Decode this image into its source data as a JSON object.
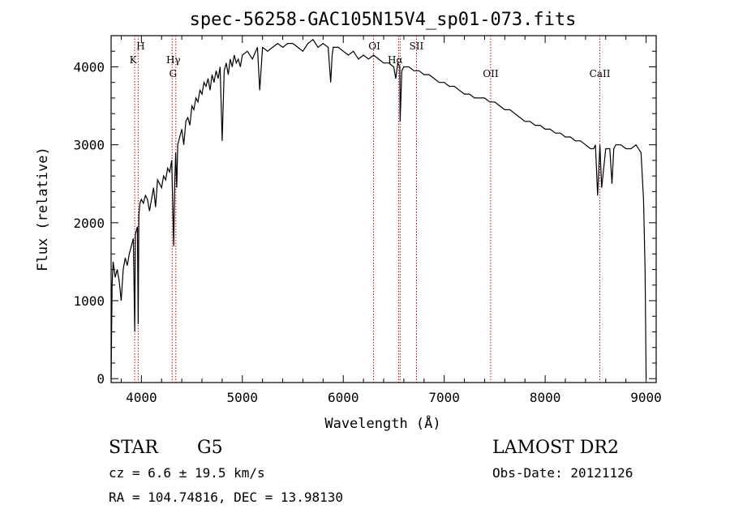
{
  "chart_data": {
    "type": "line",
    "title": "spec-56258-GAC105N15V4_sp01-073.fits",
    "xlabel": "Wavelength (Å)",
    "ylabel": "Flux (relative)",
    "xlim": [
      3700,
      9100
    ],
    "ylim": [
      -50,
      4400
    ],
    "xticks": [
      4000,
      5000,
      6000,
      7000,
      8000,
      9000
    ],
    "yticks": [
      0,
      1000,
      2000,
      3000,
      4000
    ],
    "series": [
      {
        "x": [
          3700,
          3710,
          3720,
          3740,
          3760,
          3780,
          3800,
          3820,
          3840,
          3860,
          3880,
          3900,
          3920,
          3934,
          3940,
          3950,
          3960,
          3968,
          3975,
          3985,
          4000,
          4020,
          4040,
          4060,
          4080,
          4100,
          4120,
          4140,
          4160,
          4180,
          4200,
          4220,
          4240,
          4260,
          4280,
          4300,
          4320,
          4330,
          4340,
          4350,
          4360,
          4380,
          4400,
          4420,
          4440,
          4460,
          4480,
          4500,
          4520,
          4540,
          4560,
          4580,
          4600,
          4620,
          4640,
          4660,
          4680,
          4700,
          4720,
          4740,
          4760,
          4780,
          4800,
          4820,
          4840,
          4860,
          4880,
          4900,
          4920,
          4940,
          4960,
          4980,
          5000,
          5050,
          5100,
          5150,
          5172,
          5200,
          5250,
          5300,
          5350,
          5400,
          5450,
          5500,
          5550,
          5600,
          5650,
          5700,
          5750,
          5800,
          5850,
          5875,
          5890,
          5900,
          5950,
          6000,
          6050,
          6100,
          6150,
          6200,
          6250,
          6300,
          6350,
          6400,
          6450,
          6500,
          6520,
          6540,
          6560,
          6563,
          6580,
          6600,
          6650,
          6700,
          6750,
          6800,
          6850,
          6900,
          6950,
          7000,
          7050,
          7100,
          7150,
          7200,
          7250,
          7300,
          7350,
          7400,
          7450,
          7500,
          7550,
          7600,
          7650,
          7700,
          7750,
          7800,
          7850,
          7900,
          7950,
          8000,
          8050,
          8100,
          8150,
          8200,
          8250,
          8300,
          8350,
          8400,
          8450,
          8480,
          8498,
          8520,
          8542,
          8560,
          8600,
          8640,
          8662,
          8680,
          8700,
          8750,
          8800,
          8850,
          8900,
          8950,
          8975,
          8990,
          9000
        ],
        "values": [
          0,
          1200,
          1500,
          1300,
          1400,
          1250,
          1000,
          1400,
          1550,
          1450,
          1600,
          1700,
          1800,
          600,
          1850,
          1900,
          1950,
          700,
          2100,
          2250,
          2300,
          2250,
          2350,
          2300,
          2150,
          2300,
          2450,
          2200,
          2550,
          2500,
          2450,
          2600,
          2550,
          2700,
          2650,
          2800,
          1700,
          2500,
          2900,
          2450,
          3000,
          3100,
          3200,
          3000,
          3300,
          3350,
          3250,
          3500,
          3450,
          3600,
          3550,
          3700,
          3650,
          3800,
          3750,
          3850,
          3700,
          3900,
          3800,
          3950,
          3850,
          4000,
          3050,
          3950,
          4050,
          3900,
          4100,
          4000,
          4150,
          4050,
          4100,
          4000,
          4150,
          4200,
          4100,
          4250,
          3700,
          4250,
          4200,
          4250,
          4300,
          4250,
          4300,
          4300,
          4250,
          4200,
          4300,
          4350,
          4250,
          4300,
          4250,
          3800,
          4150,
          4250,
          4250,
          4200,
          4150,
          4200,
          4100,
          4150,
          4100,
          4150,
          4100,
          4050,
          4050,
          4000,
          3850,
          4050,
          4000,
          3300,
          3950,
          4000,
          4000,
          3950,
          3950,
          3900,
          3900,
          3850,
          3800,
          3800,
          3750,
          3750,
          3700,
          3650,
          3650,
          3600,
          3600,
          3600,
          3550,
          3550,
          3500,
          3450,
          3450,
          3400,
          3350,
          3300,
          3300,
          3250,
          3250,
          3200,
          3200,
          3150,
          3150,
          3100,
          3100,
          3050,
          3050,
          3000,
          2950,
          2950,
          3000,
          2350,
          3000,
          2450,
          2950,
          2950,
          2500,
          2950,
          3000,
          3000,
          2950,
          2950,
          3000,
          2900,
          2300,
          1400,
          0
        ]
      }
    ],
    "annotations": [
      {
        "label": "H",
        "x": 3968
      },
      {
        "label": "K",
        "x": 3934
      },
      {
        "label": "Hγ",
        "x": 4341
      },
      {
        "label": "G",
        "x": 4305
      },
      {
        "label": "OI",
        "x": 6300
      },
      {
        "label": "Hα",
        "x": 6563
      },
      {
        "label": "SII",
        "x": 6725
      },
      {
        "label": "OII",
        "x": 7460
      },
      {
        "label": "CaII",
        "x": 8542
      }
    ],
    "marker_lines_x": [
      3934,
      3968,
      4305,
      4341,
      6300,
      6548,
      6563,
      6725,
      7460,
      8542
    ],
    "grid": false,
    "colors": {
      "line": "#000000",
      "markers": "#cc0000",
      "axes": "#000000",
      "background": "#ffffff"
    }
  },
  "info": {
    "object_class": "STAR",
    "subclass": "G5",
    "survey": "LAMOST DR2",
    "redshift": "cz = 6.6 ± 19.5 km/s",
    "obs_date": "Obs-Date: 20121126",
    "coords": "RA = 104.74816, DEC =  13.98130"
  }
}
